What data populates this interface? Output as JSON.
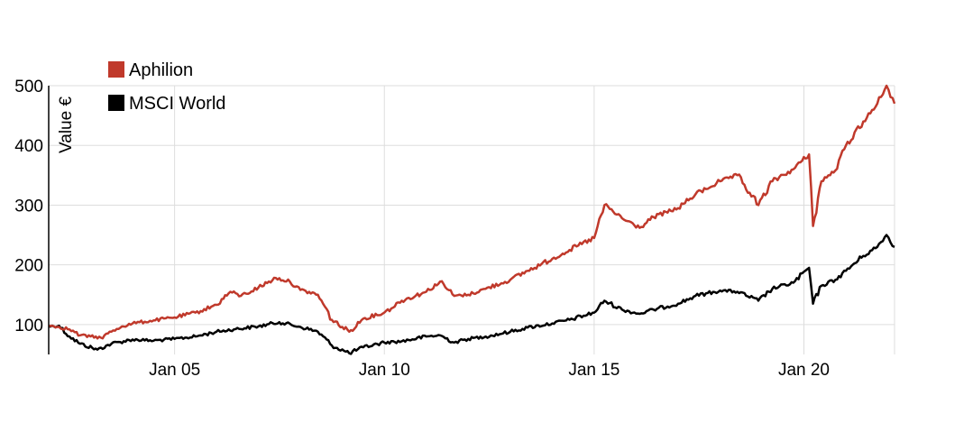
{
  "chart_data": {
    "type": "line",
    "title": "",
    "xlabel": "",
    "ylabel": "Value €",
    "ylim": [
      50,
      500
    ],
    "xlim": [
      "2002-01-01",
      "2022-02-28"
    ],
    "yticks": [
      100,
      200,
      300,
      400,
      500
    ],
    "xticks": [
      {
        "date": "2005-01-01",
        "label": "Jan 05"
      },
      {
        "date": "2010-01-01",
        "label": "Jan 10"
      },
      {
        "date": "2015-01-01",
        "label": "Jan 15"
      },
      {
        "date": "2020-01-01",
        "label": "Jan 20"
      }
    ],
    "grid": true,
    "legend_position": "top-left",
    "series": [
      {
        "name": "Aphilion",
        "color": "#c0392b",
        "points": [
          [
            "2002-01-01",
            98
          ],
          [
            "2002-04-01",
            96
          ],
          [
            "2002-07-01",
            92
          ],
          [
            "2002-10-01",
            82
          ],
          [
            "2003-01-01",
            80
          ],
          [
            "2003-04-01",
            78
          ],
          [
            "2003-07-01",
            88
          ],
          [
            "2003-10-01",
            97
          ],
          [
            "2004-01-01",
            102
          ],
          [
            "2004-07-01",
            107
          ],
          [
            "2005-01-01",
            112
          ],
          [
            "2005-07-01",
            120
          ],
          [
            "2006-01-01",
            133
          ],
          [
            "2006-05-01",
            155
          ],
          [
            "2006-08-01",
            148
          ],
          [
            "2007-01-01",
            162
          ],
          [
            "2007-06-01",
            178
          ],
          [
            "2007-10-01",
            172
          ],
          [
            "2008-01-01",
            158
          ],
          [
            "2008-06-01",
            150
          ],
          [
            "2008-10-01",
            108
          ],
          [
            "2009-03-01",
            88
          ],
          [
            "2009-07-01",
            110
          ],
          [
            "2010-01-01",
            120
          ],
          [
            "2010-06-01",
            140
          ],
          [
            "2011-01-01",
            155
          ],
          [
            "2011-05-01",
            172
          ],
          [
            "2011-09-01",
            148
          ],
          [
            "2012-01-01",
            150
          ],
          [
            "2012-06-01",
            160
          ],
          [
            "2013-01-01",
            175
          ],
          [
            "2013-06-01",
            190
          ],
          [
            "2014-01-01",
            210
          ],
          [
            "2014-06-01",
            225
          ],
          [
            "2015-01-01",
            245
          ],
          [
            "2015-04-01",
            300
          ],
          [
            "2015-09-01",
            278
          ],
          [
            "2016-02-01",
            262
          ],
          [
            "2016-06-01",
            280
          ],
          [
            "2017-01-01",
            295
          ],
          [
            "2017-06-01",
            318
          ],
          [
            "2018-01-01",
            340
          ],
          [
            "2018-06-01",
            350
          ],
          [
            "2018-12-01",
            300
          ],
          [
            "2019-04-01",
            340
          ],
          [
            "2019-10-01",
            360
          ],
          [
            "2020-02-15",
            385
          ],
          [
            "2020-03-20",
            265
          ],
          [
            "2020-06-01",
            340
          ],
          [
            "2020-10-01",
            358
          ],
          [
            "2021-01-01",
            400
          ],
          [
            "2021-06-01",
            440
          ],
          [
            "2021-10-01",
            470
          ],
          [
            "2021-12-20",
            500
          ],
          [
            "2022-02-28",
            470
          ]
        ]
      },
      {
        "name": "MSCI World",
        "color": "#000000",
        "points": [
          [
            "2002-01-01",
            97
          ],
          [
            "2002-04-01",
            98
          ],
          [
            "2002-07-01",
            80
          ],
          [
            "2002-10-01",
            68
          ],
          [
            "2003-03-01",
            58
          ],
          [
            "2003-07-01",
            68
          ],
          [
            "2004-01-01",
            75
          ],
          [
            "2004-07-01",
            73
          ],
          [
            "2005-01-01",
            76
          ],
          [
            "2005-07-01",
            80
          ],
          [
            "2006-01-01",
            88
          ],
          [
            "2006-06-01",
            92
          ],
          [
            "2007-01-01",
            97
          ],
          [
            "2007-07-01",
            104
          ],
          [
            "2008-01-01",
            96
          ],
          [
            "2008-06-01",
            88
          ],
          [
            "2008-10-01",
            65
          ],
          [
            "2009-03-01",
            52
          ],
          [
            "2009-07-01",
            62
          ],
          [
            "2010-01-01",
            70
          ],
          [
            "2010-06-01",
            72
          ],
          [
            "2011-01-01",
            80
          ],
          [
            "2011-05-01",
            82
          ],
          [
            "2011-09-01",
            70
          ],
          [
            "2012-01-01",
            76
          ],
          [
            "2012-06-01",
            80
          ],
          [
            "2013-01-01",
            88
          ],
          [
            "2013-06-01",
            95
          ],
          [
            "2014-01-01",
            102
          ],
          [
            "2014-06-01",
            108
          ],
          [
            "2015-01-01",
            120
          ],
          [
            "2015-04-01",
            140
          ],
          [
            "2015-09-01",
            125
          ],
          [
            "2016-02-01",
            118
          ],
          [
            "2016-06-01",
            125
          ],
          [
            "2017-01-01",
            135
          ],
          [
            "2017-06-01",
            148
          ],
          [
            "2018-01-01",
            157
          ],
          [
            "2018-06-01",
            155
          ],
          [
            "2018-12-01",
            140
          ],
          [
            "2019-04-01",
            160
          ],
          [
            "2019-10-01",
            170
          ],
          [
            "2020-02-15",
            195
          ],
          [
            "2020-03-20",
            135
          ],
          [
            "2020-06-01",
            165
          ],
          [
            "2020-10-01",
            175
          ],
          [
            "2021-01-01",
            190
          ],
          [
            "2021-06-01",
            215
          ],
          [
            "2021-10-01",
            230
          ],
          [
            "2021-12-20",
            250
          ],
          [
            "2022-02-28",
            230
          ]
        ]
      }
    ]
  }
}
